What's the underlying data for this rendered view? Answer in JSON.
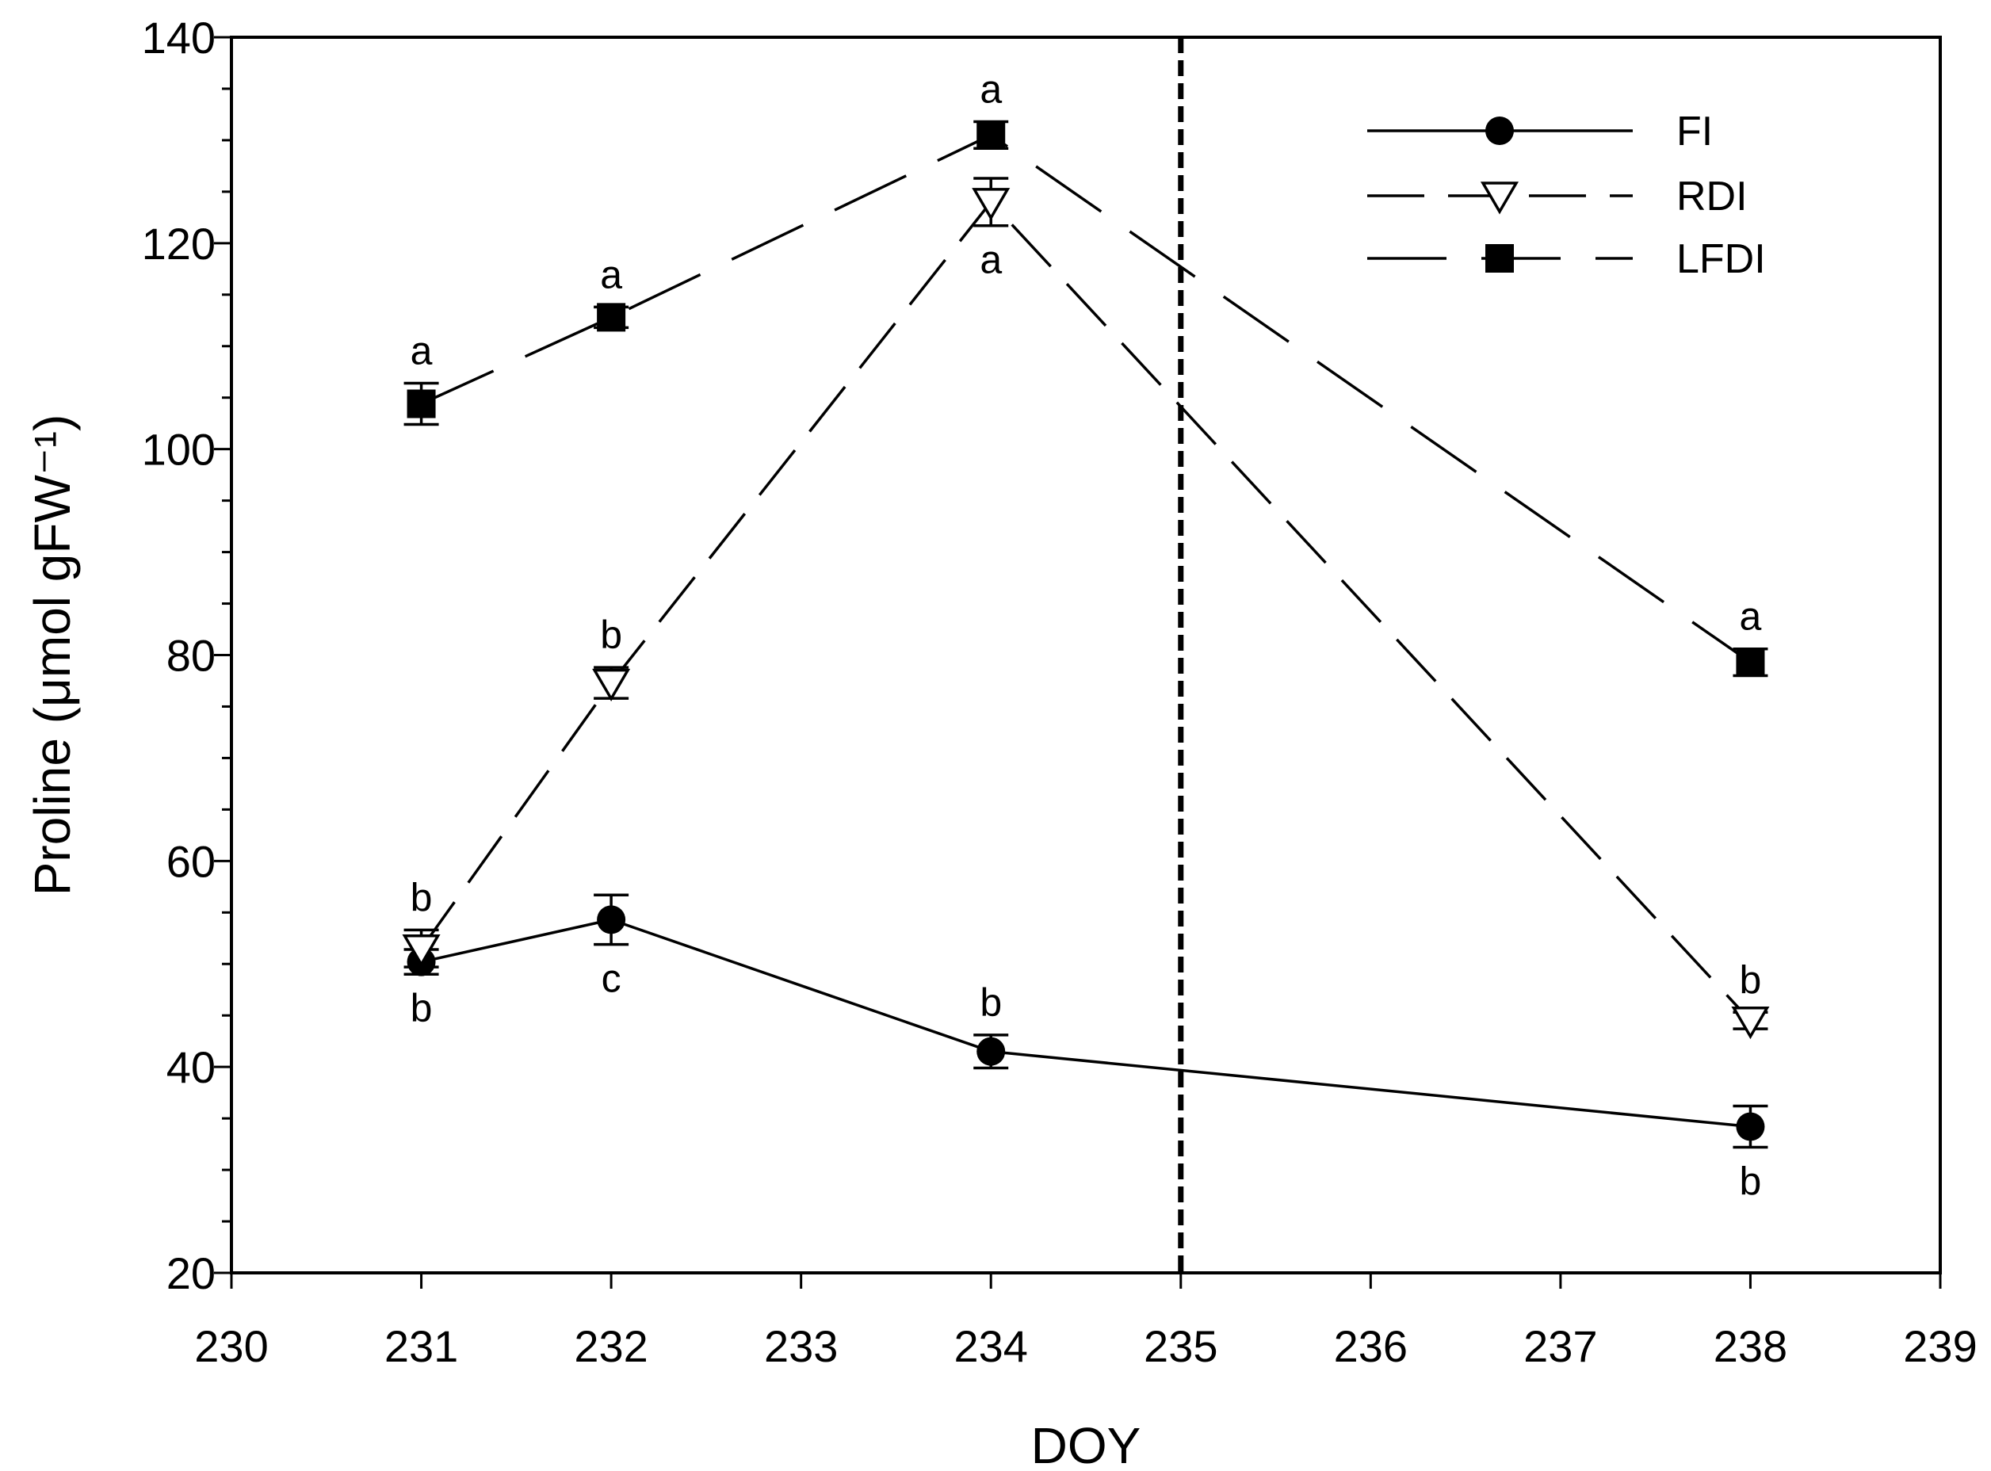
{
  "chart_data": {
    "type": "line",
    "title": "",
    "xlabel": "DOY",
    "ylabel": "Proline (μmol gFW⁻¹)",
    "xlim": [
      230,
      239
    ],
    "ylim": [
      20,
      140
    ],
    "xticks": [
      230,
      231,
      232,
      233,
      234,
      235,
      236,
      237,
      238,
      239
    ],
    "yticks": [
      20,
      40,
      60,
      80,
      100,
      120,
      140
    ],
    "yminor_step": 5,
    "grid": false,
    "legend_position": "top-right",
    "reference_line": {
      "x": 235,
      "style": "dashed"
    },
    "series": [
      {
        "name": "FI",
        "line_style": "solid",
        "marker": "filled-circle",
        "points": [
          {
            "x": 231,
            "y": 50.2,
            "err": 1.2,
            "letter": "b",
            "letter_pos": "below"
          },
          {
            "x": 232,
            "y": 54.3,
            "err": 2.4,
            "letter": "c",
            "letter_pos": "below"
          },
          {
            "x": 234,
            "y": 41.5,
            "err": 1.6,
            "letter": "b",
            "letter_pos": "above"
          },
          {
            "x": 238,
            "y": 34.2,
            "err": 2.0,
            "letter": "b",
            "letter_pos": "below"
          }
        ]
      },
      {
        "name": "RDI",
        "line_style": "dashed",
        "marker": "open-triangle-down",
        "points": [
          {
            "x": 231,
            "y": 51.5,
            "err": 1.8,
            "letter": "b",
            "letter_pos": "above"
          },
          {
            "x": 232,
            "y": 77.3,
            "err": 1.5,
            "letter": "b",
            "letter_pos": "above"
          },
          {
            "x": 234,
            "y": 124.0,
            "err": 2.3,
            "letter": "a",
            "letter_pos": "below"
          },
          {
            "x": 238,
            "y": 44.5,
            "err": 0.8,
            "letter": "b",
            "letter_pos": "above"
          }
        ]
      },
      {
        "name": "LFDI",
        "line_style": "long-dashed",
        "marker": "filled-square",
        "points": [
          {
            "x": 231,
            "y": 104.4,
            "err": 2.0,
            "letter": "a",
            "letter_pos": "above"
          },
          {
            "x": 232,
            "y": 112.8,
            "err": 1.0,
            "letter": "a",
            "letter_pos": "above"
          },
          {
            "x": 234,
            "y": 130.5,
            "err": 1.3,
            "letter": "a",
            "letter_pos": "above"
          },
          {
            "x": 238,
            "y": 79.3,
            "err": 1.3,
            "letter": "a",
            "letter_pos": "above"
          }
        ]
      }
    ]
  }
}
